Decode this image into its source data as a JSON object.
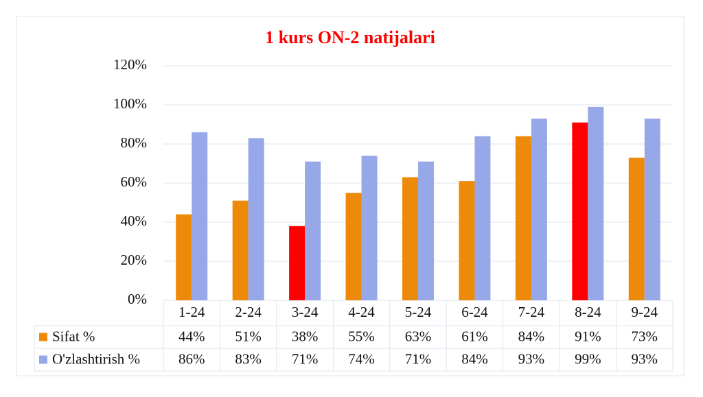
{
  "chart_data": {
    "type": "bar",
    "title": "1 kurs ON-2 natijalari",
    "categories": [
      "1-24",
      "2-24",
      "3-24",
      "4-24",
      "5-24",
      "6-24",
      "7-24",
      "8-24",
      "9-24"
    ],
    "series": [
      {
        "name": "Sifat %",
        "color": "#ed8a0a",
        "point_colors": [
          "#ed8a0a",
          "#ed8a0a",
          "#ff0000",
          "#ed8a0a",
          "#ed8a0a",
          "#ed8a0a",
          "#ed8a0a",
          "#ff0000",
          "#ed8a0a"
        ],
        "values": [
          44,
          51,
          38,
          55,
          63,
          61,
          84,
          91,
          73
        ],
        "value_labels": [
          "44%",
          "51%",
          "38%",
          "55%",
          "63%",
          "61%",
          "84%",
          "91%",
          "73%"
        ]
      },
      {
        "name": "O'zlashtirish %",
        "color": "#96a8e8",
        "values": [
          86,
          83,
          71,
          74,
          71,
          84,
          93,
          99,
          93
        ],
        "value_labels": [
          "86%",
          "83%",
          "71%",
          "74%",
          "71%",
          "84%",
          "93%",
          "99%",
          "93%"
        ]
      }
    ],
    "ylim": [
      0,
      120
    ],
    "yticks": [
      {
        "value": 0,
        "label": "0%"
      },
      {
        "value": 20,
        "label": "20%"
      },
      {
        "value": 40,
        "label": "40%"
      },
      {
        "value": 60,
        "label": "60%"
      },
      {
        "value": 80,
        "label": "80%"
      },
      {
        "value": 100,
        "label": "100%"
      },
      {
        "value": 120,
        "label": "120%"
      }
    ],
    "grid": true
  }
}
